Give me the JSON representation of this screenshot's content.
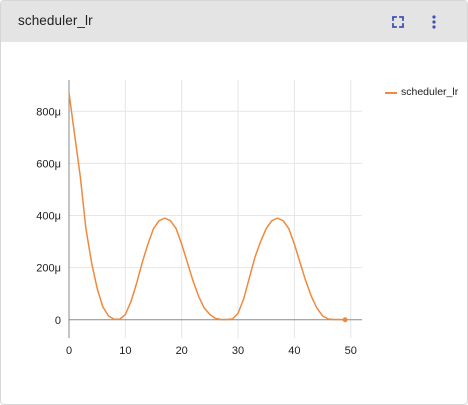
{
  "card": {
    "title": "scheduler_lr",
    "fullscreen_icon": "fullscreen-icon",
    "menu_icon": "more-vert-icon",
    "accent_color": "#3f51b5"
  },
  "legend": {
    "items": [
      {
        "label": "scheduler_lr",
        "color": "#f0893c"
      }
    ]
  },
  "chart_data": {
    "type": "line",
    "grid": true,
    "legend_position": "top-right",
    "xlim": [
      0,
      52
    ],
    "ylim": [
      -7e-05,
      0.00092
    ],
    "x_ticks": [
      0,
      10,
      20,
      30,
      40,
      50
    ],
    "x_tick_labels": [
      "0",
      "10",
      "20",
      "30",
      "40",
      "50"
    ],
    "y_ticks": [
      0,
      0.0002,
      0.0004,
      0.0006,
      0.0008
    ],
    "y_tick_labels": [
      "0",
      "200μ",
      "400μ",
      "600μ",
      "800μ"
    ],
    "series": [
      {
        "name": "scheduler_lr",
        "color": "#f0893c",
        "x": [
          0,
          1,
          2,
          3,
          4,
          5,
          6,
          7,
          8,
          9,
          10,
          11,
          12,
          13,
          14,
          15,
          16,
          17,
          18,
          19,
          20,
          21,
          22,
          23,
          24,
          25,
          26,
          27,
          28,
          29,
          30,
          31,
          32,
          33,
          34,
          35,
          36,
          37,
          38,
          39,
          40,
          41,
          42,
          43,
          44,
          45,
          46,
          47,
          48,
          49
        ],
        "y": [
          0.00087,
          0.00071,
          0.00055,
          0.00035,
          0.00022,
          0.00012,
          5e-05,
          1.5e-05,
          2e-06,
          2e-06,
          2e-05,
          7e-05,
          0.00014,
          0.00022,
          0.00029,
          0.00035,
          0.00038,
          0.00039,
          0.00038,
          0.00035,
          0.00029,
          0.00022,
          0.00015,
          9e-05,
          4.5e-05,
          2e-05,
          5e-06,
          1e-06,
          1e-06,
          3e-06,
          2.5e-05,
          8e-05,
          0.00016,
          0.00024,
          0.0003,
          0.00035,
          0.00038,
          0.00039,
          0.00038,
          0.00035,
          0.00029,
          0.00022,
          0.00015,
          9e-05,
          4.5e-05,
          1.5e-05,
          3e-06,
          1e-06,
          1e-06,
          0.0
        ]
      }
    ]
  }
}
